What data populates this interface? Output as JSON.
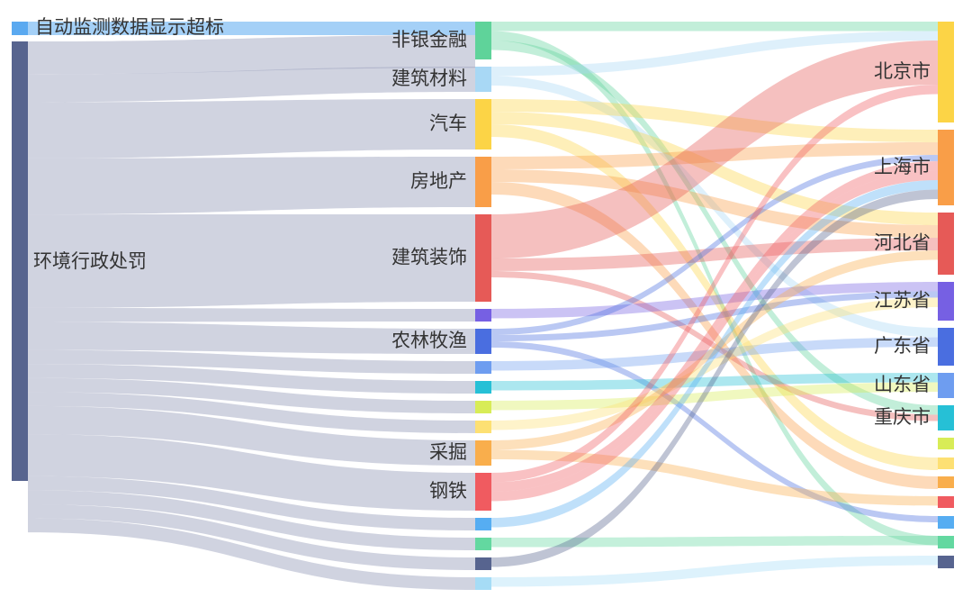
{
  "chart_data": {
    "type": "sankey",
    "title": "",
    "sources": [
      {
        "name": "自动监测数据显示超标",
        "color": "#5aa9f0"
      },
      {
        "name": "环境行政处罚",
        "color": "#57648f"
      }
    ],
    "industries": [
      {
        "name": "非银金融",
        "color": "#5fd39a"
      },
      {
        "name": "建筑材料",
        "color": "#a8d8f5"
      },
      {
        "name": "汽车",
        "color": "#fcd446"
      },
      {
        "name": "房地产",
        "color": "#f99e48"
      },
      {
        "name": "建筑装饰",
        "color": "#e65a57"
      },
      {
        "name": "",
        "color": "#7660e3"
      },
      {
        "name": "农林牧渔",
        "color": "#4a6ee0"
      },
      {
        "name": "",
        "color": "#6e9df0"
      },
      {
        "name": "",
        "color": "#26c0d6"
      },
      {
        "name": "",
        "color": "#d8ec57"
      },
      {
        "name": "",
        "color": "#fde073"
      },
      {
        "name": "采掘",
        "color": "#f9ae4c"
      },
      {
        "name": "钢铁",
        "color": "#f05b60"
      },
      {
        "name": "",
        "color": "#56adf2"
      },
      {
        "name": "",
        "color": "#63d8a0"
      },
      {
        "name": "",
        "color": "#57648f"
      },
      {
        "name": "",
        "color": "#a6dcf6"
      }
    ],
    "regions": [
      {
        "name": "北京市",
        "color": "#fcd446"
      },
      {
        "name": "上海市",
        "color": "#f99e48"
      },
      {
        "name": "河北省",
        "color": "#e65a57"
      },
      {
        "name": "江苏省",
        "color": "#7660e3"
      },
      {
        "name": "广东省",
        "color": "#4a6ee0"
      },
      {
        "name": "山东省",
        "color": "#6e9df0"
      },
      {
        "name": "重庆市",
        "color": "#26c0d6"
      },
      {
        "name": "",
        "color": "#d8ec57"
      },
      {
        "name": "",
        "color": "#fde073"
      },
      {
        "name": "",
        "color": "#f9ae4c"
      },
      {
        "name": "",
        "color": "#f05b60"
      },
      {
        "name": "",
        "color": "#56adf2"
      },
      {
        "name": "",
        "color": "#63d8a0"
      },
      {
        "name": "",
        "color": "#57648f"
      }
    ],
    "values": {
      "sources": [
        1,
        47
      ],
      "industries": [
        4.5,
        3,
        6,
        6,
        10,
        1.5,
        3,
        1.5,
        1.5,
        1.5,
        1.5,
        3,
        4.5,
        1.5,
        1.5,
        1.5,
        1.5
      ],
      "regions": [
        12,
        9,
        8,
        4.6,
        4.6,
        3.2,
        3.2,
        1.5,
        1.5,
        1.5,
        1.5,
        1.5,
        1.5,
        1.5
      ]
    },
    "links": [
      {
        "source": 0,
        "target": 0,
        "value": 1
      },
      {
        "source": 1,
        "target": 0,
        "value": 3.5
      },
      {
        "source": 1,
        "target": 1,
        "value": 3
      },
      {
        "source": 1,
        "target": 2,
        "value": 6
      },
      {
        "source": 1,
        "target": 3,
        "value": 6
      },
      {
        "source": 1,
        "target": 4,
        "value": 10
      },
      {
        "source": 1,
        "target": 5,
        "value": 1.5
      },
      {
        "source": 1,
        "target": 6,
        "value": 3
      },
      {
        "source": 1,
        "target": 7,
        "value": 1.5
      },
      {
        "source": 1,
        "target": 8,
        "value": 1.5
      },
      {
        "source": 1,
        "target": 9,
        "value": 1.5
      },
      {
        "source": 1,
        "target": 10,
        "value": 1.5
      },
      {
        "source": 1,
        "target": 11,
        "value": 3
      },
      {
        "source": 1,
        "target": 12,
        "value": 4.5
      },
      {
        "source": 1,
        "target": 13,
        "value": 1.5
      },
      {
        "source": 1,
        "target": 14,
        "value": 1.5
      },
      {
        "source": 1,
        "target": 15,
        "value": 1.5
      },
      {
        "source": 1,
        "target": 16,
        "value": 1.5
      },
      {
        "source": 0,
        "target": 0,
        "value": 1.5,
        "kind": "ir"
      },
      {
        "source": 0,
        "target": 12,
        "value": 1.5,
        "kind": "ir"
      },
      {
        "source": 0,
        "target": 6,
        "value": 1.5,
        "kind": "ir"
      },
      {
        "source": 1,
        "target": 0,
        "value": 1.5,
        "kind": "ir"
      },
      {
        "source": 1,
        "target": 4,
        "value": 1.5,
        "kind": "ir"
      },
      {
        "source": 2,
        "target": 1,
        "value": 2,
        "kind": "ir"
      },
      {
        "source": 2,
        "target": 2,
        "value": 2,
        "kind": "ir"
      },
      {
        "source": 2,
        "target": 8,
        "value": 2,
        "kind": "ir"
      },
      {
        "source": 3,
        "target": 1,
        "value": 2,
        "kind": "ir"
      },
      {
        "source": 3,
        "target": 2,
        "value": 2,
        "kind": "ir"
      },
      {
        "source": 3,
        "target": 9,
        "value": 2,
        "kind": "ir"
      },
      {
        "source": 4,
        "target": 0,
        "value": 7,
        "kind": "ir"
      },
      {
        "source": 4,
        "target": 2,
        "value": 2,
        "kind": "ir"
      },
      {
        "source": 4,
        "target": 6,
        "value": 1,
        "kind": "ir"
      },
      {
        "source": 5,
        "target": 3,
        "value": 1.5,
        "kind": "ir"
      },
      {
        "source": 6,
        "target": 1,
        "value": 1,
        "kind": "ir"
      },
      {
        "source": 6,
        "target": 3,
        "value": 1,
        "kind": "ir"
      },
      {
        "source": 6,
        "target": 11,
        "value": 1,
        "kind": "ir"
      },
      {
        "source": 7,
        "target": 4,
        "value": 1.5,
        "kind": "ir"
      },
      {
        "source": 8,
        "target": 5,
        "value": 1.5,
        "kind": "ir"
      },
      {
        "source": 9,
        "target": 5,
        "value": 1.5,
        "kind": "ir"
      },
      {
        "source": 10,
        "target": 3,
        "value": 1.5,
        "kind": "ir"
      },
      {
        "source": 11,
        "target": 2,
        "value": 1.5,
        "kind": "ir"
      },
      {
        "source": 11,
        "target": 10,
        "value": 1.5,
        "kind": "ir"
      },
      {
        "source": 12,
        "target": 0,
        "value": 1.5,
        "kind": "ir"
      },
      {
        "source": 12,
        "target": 1,
        "value": 1.5,
        "kind": "ir"
      },
      {
        "source": 12,
        "target": 1,
        "value": 1.5,
        "kind": "ir"
      },
      {
        "source": 13,
        "target": 1,
        "value": 1.5,
        "kind": "ir"
      },
      {
        "source": 14,
        "target": 12,
        "value": 1.5,
        "kind": "ir"
      },
      {
        "source": 15,
        "target": 1,
        "value": 1.5,
        "kind": "ir"
      },
      {
        "source": 16,
        "target": 13,
        "value": 1.5,
        "kind": "ir"
      }
    ]
  }
}
